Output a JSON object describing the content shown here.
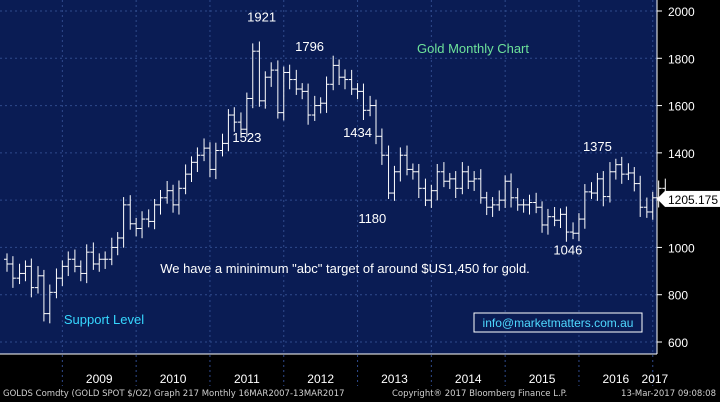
{
  "colors": {
    "plot_bg": "#0a1c54",
    "frame_bg": "#000000",
    "grid": "#2f4a8c",
    "bars": "#ffffff",
    "title_text": "#6de29a",
    "annotation_text": "#ffffff",
    "support_label": "#36d7ff",
    "link_text": "#4fd8ff"
  },
  "chart_data": {
    "type": "ohlc",
    "title": "Gold Monthly Chart",
    "annotations": [
      {
        "text": "1921",
        "year": 2011.7,
        "value": 1921
      },
      {
        "text": "1796",
        "year": 2012.35,
        "value": 1796
      },
      {
        "text": "1523",
        "year": 2011.5,
        "value": 1523
      },
      {
        "text": "1434",
        "year": 2013.0,
        "value": 1434
      },
      {
        "text": "1180",
        "year": 2013.2,
        "value": 1180
      },
      {
        "text": "1375",
        "year": 2016.25,
        "value": 1375
      },
      {
        "text": "1046",
        "year": 2015.85,
        "value": 1046
      }
    ],
    "note": "We have a mininimum \"abc\" target of around $US1,450 for gold.",
    "support_label": "Support Level",
    "email": "info@marketmatters.com.au",
    "last_price": "1205.175",
    "ylim": [
      560,
      2060
    ],
    "y_ticks": [
      600,
      800,
      1000,
      1200,
      1400,
      1600,
      1800,
      2000
    ],
    "x_years": [
      "2009",
      "2010",
      "2011",
      "2012",
      "2013",
      "2014",
      "2015",
      "2016",
      "2017"
    ],
    "xlim": [
      2008.25,
      2017.33
    ],
    "series": [
      {
        "values": [
          [
            2008.25,
            930
          ],
          [
            2008.33,
            870
          ],
          [
            2008.42,
            890
          ],
          [
            2008.5,
            920
          ],
          [
            2008.58,
            830
          ],
          [
            2008.67,
            880
          ],
          [
            2008.75,
            720
          ],
          [
            2008.83,
            810
          ],
          [
            2008.92,
            870
          ],
          [
            2009.0,
            920
          ],
          [
            2009.08,
            950
          ],
          [
            2009.17,
            920
          ],
          [
            2009.25,
            890
          ],
          [
            2009.33,
            980
          ],
          [
            2009.42,
            930
          ],
          [
            2009.5,
            950
          ],
          [
            2009.58,
            950
          ],
          [
            2009.67,
            1000
          ],
          [
            2009.75,
            1040
          ],
          [
            2009.83,
            1180
          ],
          [
            2009.92,
            1100
          ],
          [
            2010.0,
            1080
          ],
          [
            2010.08,
            1120
          ],
          [
            2010.17,
            1110
          ],
          [
            2010.25,
            1180
          ],
          [
            2010.33,
            1210
          ],
          [
            2010.42,
            1240
          ],
          [
            2010.5,
            1180
          ],
          [
            2010.58,
            1250
          ],
          [
            2010.67,
            1310
          ],
          [
            2010.75,
            1360
          ],
          [
            2010.83,
            1390
          ],
          [
            2010.92,
            1420
          ],
          [
            2011.0,
            1330
          ],
          [
            2011.08,
            1410
          ],
          [
            2011.17,
            1440
          ],
          [
            2011.25,
            1560
          ],
          [
            2011.33,
            1530
          ],
          [
            2011.42,
            1500
          ],
          [
            2011.5,
            1630
          ],
          [
            2011.58,
            1830
          ],
          [
            2011.67,
            1620
          ],
          [
            2011.75,
            1720
          ],
          [
            2011.83,
            1750
          ],
          [
            2011.92,
            1570
          ],
          [
            2012.0,
            1740
          ],
          [
            2012.08,
            1710
          ],
          [
            2012.17,
            1670
          ],
          [
            2012.25,
            1660
          ],
          [
            2012.33,
            1560
          ],
          [
            2012.42,
            1600
          ],
          [
            2012.5,
            1610
          ],
          [
            2012.58,
            1690
          ],
          [
            2012.67,
            1770
          ],
          [
            2012.75,
            1720
          ],
          [
            2012.83,
            1710
          ],
          [
            2012.92,
            1670
          ],
          [
            2013.0,
            1660
          ],
          [
            2013.08,
            1580
          ],
          [
            2013.17,
            1600
          ],
          [
            2013.25,
            1470
          ],
          [
            2013.33,
            1390
          ],
          [
            2013.42,
            1230
          ],
          [
            2013.5,
            1320
          ],
          [
            2013.58,
            1390
          ],
          [
            2013.67,
            1330
          ],
          [
            2013.75,
            1320
          ],
          [
            2013.83,
            1250
          ],
          [
            2013.92,
            1200
          ],
          [
            2014.0,
            1240
          ],
          [
            2014.08,
            1320
          ],
          [
            2014.17,
            1280
          ],
          [
            2014.25,
            1290
          ],
          [
            2014.33,
            1250
          ],
          [
            2014.42,
            1320
          ],
          [
            2014.5,
            1280
          ],
          [
            2014.58,
            1290
          ],
          [
            2014.67,
            1210
          ],
          [
            2014.75,
            1170
          ],
          [
            2014.83,
            1180
          ],
          [
            2014.92,
            1200
          ],
          [
            2015.0,
            1280
          ],
          [
            2015.08,
            1210
          ],
          [
            2015.17,
            1180
          ],
          [
            2015.25,
            1180
          ],
          [
            2015.33,
            1190
          ],
          [
            2015.42,
            1170
          ],
          [
            2015.5,
            1095
          ],
          [
            2015.58,
            1130
          ],
          [
            2015.67,
            1115
          ],
          [
            2015.75,
            1140
          ],
          [
            2015.83,
            1065
          ],
          [
            2015.92,
            1060
          ],
          [
            2016.0,
            1120
          ],
          [
            2016.08,
            1235
          ],
          [
            2016.17,
            1230
          ],
          [
            2016.25,
            1290
          ],
          [
            2016.33,
            1215
          ],
          [
            2016.42,
            1320
          ],
          [
            2016.5,
            1350
          ],
          [
            2016.58,
            1310
          ],
          [
            2016.67,
            1315
          ],
          [
            2016.75,
            1270
          ],
          [
            2016.83,
            1170
          ],
          [
            2016.92,
            1150
          ],
          [
            2017.0,
            1210
          ],
          [
            2017.08,
            1250
          ],
          [
            2017.17,
            1205
          ]
        ]
      }
    ]
  },
  "footer": {
    "left": "GOLDS Comdty (GOLD SPOT $/OZ) Graph 217  Monthly 16MAR2007-13MAR2017",
    "middle": "Copyright® 2017 Bloomberg Finance L.P.",
    "right": "13-Mar-2017 09:08:08"
  }
}
